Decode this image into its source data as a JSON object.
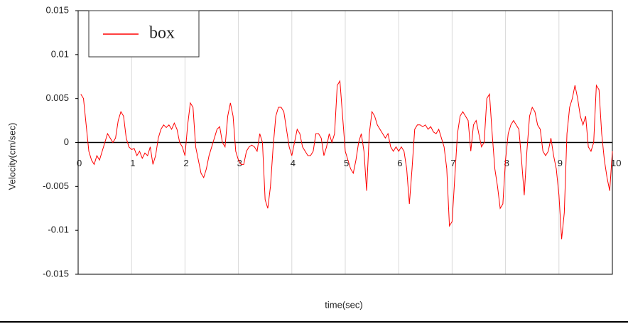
{
  "chart_data": {
    "type": "line",
    "x_label": "time(sec)",
    "y_label": "Velocity(cm/sec)",
    "x": [
      0.05,
      0.1,
      0.15,
      0.2,
      0.25,
      0.3,
      0.35,
      0.4,
      0.45,
      0.5,
      0.55,
      0.6,
      0.65,
      0.7,
      0.75,
      0.8,
      0.85,
      0.9,
      0.95,
      1.0,
      1.05,
      1.1,
      1.15,
      1.2,
      1.25,
      1.3,
      1.35,
      1.4,
      1.45,
      1.5,
      1.55,
      1.6,
      1.65,
      1.7,
      1.75,
      1.8,
      1.85,
      1.9,
      1.95,
      2.0,
      2.05,
      2.1,
      2.15,
      2.2,
      2.25,
      2.3,
      2.35,
      2.4,
      2.45,
      2.5,
      2.55,
      2.6,
      2.65,
      2.7,
      2.75,
      2.8,
      2.85,
      2.9,
      2.95,
      3.0,
      3.05,
      3.1,
      3.15,
      3.2,
      3.25,
      3.3,
      3.35,
      3.4,
      3.45,
      3.5,
      3.55,
      3.6,
      3.65,
      3.7,
      3.75,
      3.8,
      3.85,
      3.9,
      3.95,
      4.0,
      4.05,
      4.1,
      4.15,
      4.2,
      4.25,
      4.3,
      4.35,
      4.4,
      4.45,
      4.5,
      4.55,
      4.6,
      4.65,
      4.7,
      4.75,
      4.8,
      4.85,
      4.9,
      4.95,
      5.0,
      5.05,
      5.1,
      5.15,
      5.2,
      5.25,
      5.3,
      5.35,
      5.4,
      5.45,
      5.5,
      5.55,
      5.6,
      5.65,
      5.7,
      5.75,
      5.8,
      5.85,
      5.9,
      5.95,
      6.0,
      6.05,
      6.1,
      6.15,
      6.2,
      6.25,
      6.3,
      6.35,
      6.4,
      6.45,
      6.5,
      6.55,
      6.6,
      6.65,
      6.7,
      6.75,
      6.8,
      6.85,
      6.9,
      6.95,
      7.0,
      7.05,
      7.1,
      7.15,
      7.2,
      7.25,
      7.3,
      7.35,
      7.4,
      7.45,
      7.5,
      7.55,
      7.6,
      7.65,
      7.7,
      7.75,
      7.8,
      7.85,
      7.9,
      7.95,
      8.0,
      8.05,
      8.1,
      8.15,
      8.2,
      8.25,
      8.3,
      8.35,
      8.4,
      8.45,
      8.5,
      8.55,
      8.6,
      8.65,
      8.7,
      8.75,
      8.8,
      8.85,
      8.9,
      8.95,
      9.0,
      9.05,
      9.1,
      9.15,
      9.2,
      9.25,
      9.3,
      9.35,
      9.4,
      9.45,
      9.5,
      9.55,
      9.6,
      9.65,
      9.7,
      9.75,
      9.8,
      9.85,
      9.9,
      9.95,
      10.0
    ],
    "series": [
      {
        "name": "box",
        "color": "#ff0000",
        "values": [
          0.0055,
          0.005,
          0.002,
          -0.001,
          -0.002,
          -0.0025,
          -0.0015,
          -0.002,
          -0.001,
          0,
          0.001,
          0.0005,
          0,
          0.0005,
          0.0025,
          0.0035,
          0.003,
          0.0005,
          -0.0005,
          -0.0008,
          -0.0007,
          -0.0015,
          -0.001,
          -0.0018,
          -0.0012,
          -0.0015,
          -0.0005,
          -0.0025,
          -0.0015,
          0.0005,
          0.0015,
          0.002,
          0.0017,
          0.002,
          0.0015,
          0.0022,
          0.0015,
          0,
          -0.0005,
          -0.0015,
          0.002,
          0.0045,
          0.004,
          -0.0005,
          -0.002,
          -0.0035,
          -0.004,
          -0.003,
          -0.0015,
          -0.0005,
          0.0005,
          0.0015,
          0.0018,
          0,
          -0.0005,
          0.003,
          0.0045,
          0.003,
          -0.001,
          -0.002,
          -0.0025,
          -0.0025,
          -0.001,
          -0.0005,
          -0.0003,
          -0.0005,
          -0.001,
          0.001,
          0,
          -0.0065,
          -0.0075,
          -0.005,
          -0.0005,
          0.003,
          0.004,
          0.004,
          0.0035,
          0.0015,
          -0.0005,
          -0.0015,
          0,
          0.0015,
          0.001,
          -0.0005,
          -0.001,
          -0.0015,
          -0.0015,
          -0.001,
          0.001,
          0.001,
          0.0005,
          -0.0015,
          -0.0005,
          0.001,
          0,
          0.001,
          0.0065,
          0.007,
          0.003,
          -0.001,
          -0.002,
          -0.003,
          -0.0035,
          -0.002,
          0,
          0.001,
          -0.001,
          -0.0055,
          0.001,
          0.0035,
          0.003,
          0.002,
          0.0015,
          0.001,
          0.0005,
          0.001,
          -0.0005,
          -0.001,
          -0.0005,
          -0.001,
          -0.0005,
          -0.001,
          -0.003,
          -0.007,
          -0.003,
          0.0015,
          0.002,
          0.002,
          0.0018,
          0.002,
          0.0015,
          0.0018,
          0.0012,
          0.001,
          0.0015,
          0.0005,
          -0.0005,
          -0.003,
          -0.0095,
          -0.009,
          -0.004,
          0.001,
          0.003,
          0.0035,
          0.003,
          0.0025,
          -0.001,
          0.002,
          0.0025,
          0.001,
          -0.0005,
          0,
          0.005,
          0.0055,
          0.001,
          -0.003,
          -0.005,
          -0.0075,
          -0.007,
          -0.002,
          0.001,
          0.002,
          0.0025,
          0.002,
          0.0015,
          -0.002,
          -0.006,
          -0.001,
          0.003,
          0.004,
          0.0035,
          0.002,
          0.0015,
          -0.001,
          -0.0015,
          -0.001,
          0.0005,
          -0.0015,
          -0.003,
          -0.006,
          -0.011,
          -0.008,
          0.001,
          0.004,
          0.005,
          0.0065,
          0.005,
          0.003,
          0.002,
          0.003,
          -0.0005,
          -0.001,
          0,
          0.0065,
          0.006,
          0.001,
          -0.002,
          -0.004,
          -0.0055,
          -0.001
        ]
      }
    ],
    "xlim": [
      0,
      10
    ],
    "xticks": [
      0,
      1,
      2,
      3,
      4,
      5,
      6,
      7,
      8,
      9,
      10
    ],
    "ylim": [
      -0.015,
      0.015
    ],
    "yticks": [
      0.015,
      0.01,
      0.005,
      0,
      -0.005,
      -0.01,
      -0.015
    ],
    "grid": "x",
    "legend": "upper left"
  }
}
